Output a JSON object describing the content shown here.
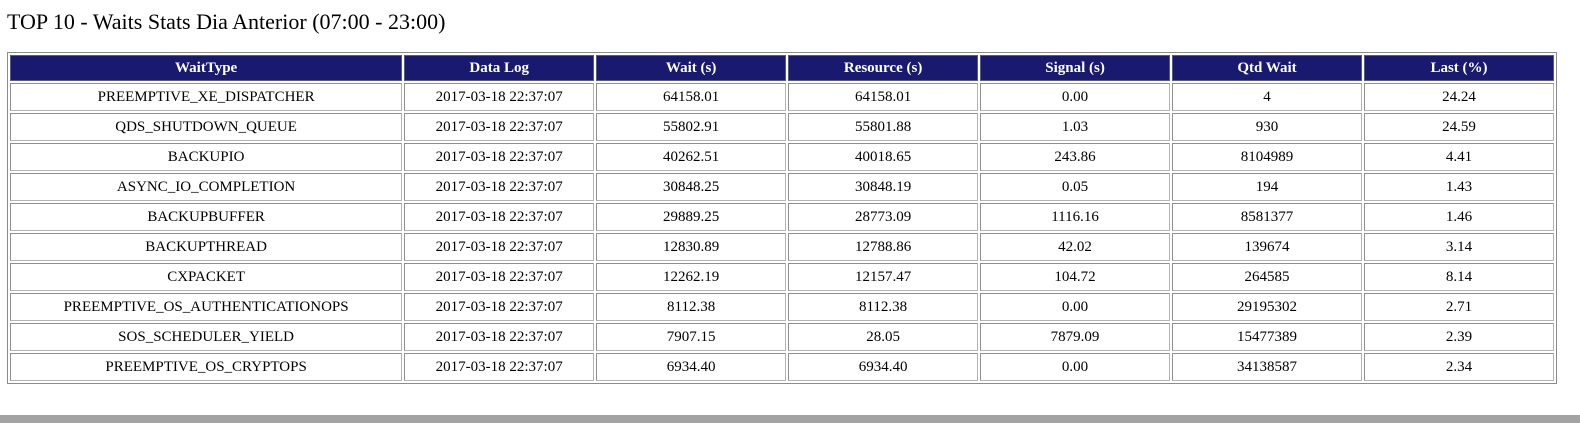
{
  "page": {
    "title": "TOP 10 - Waits Stats Dia Anterior (07:00 - 23:00)"
  },
  "table": {
    "columns": [
      "WaitType",
      "Data Log",
      "Wait (s)",
      "Resource (s)",
      "Signal (s)",
      "Qtd Wait",
      "Last (%)"
    ],
    "rows": [
      [
        "PREEMPTIVE_XE_DISPATCHER",
        "2017-03-18 22:37:07",
        "64158.01",
        "64158.01",
        "0.00",
        "4",
        "24.24"
      ],
      [
        "QDS_SHUTDOWN_QUEUE",
        "2017-03-18 22:37:07",
        "55802.91",
        "55801.88",
        "1.03",
        "930",
        "24.59"
      ],
      [
        "BACKUPIO",
        "2017-03-18 22:37:07",
        "40262.51",
        "40018.65",
        "243.86",
        "8104989",
        "4.41"
      ],
      [
        "ASYNC_IO_COMPLETION",
        "2017-03-18 22:37:07",
        "30848.25",
        "30848.19",
        "0.05",
        "194",
        "1.43"
      ],
      [
        "BACKUPBUFFER",
        "2017-03-18 22:37:07",
        "29889.25",
        "28773.09",
        "1116.16",
        "8581377",
        "1.46"
      ],
      [
        "BACKUPTHREAD",
        "2017-03-18 22:37:07",
        "12830.89",
        "12788.86",
        "42.02",
        "139674",
        "3.14"
      ],
      [
        "CXPACKET",
        "2017-03-18 22:37:07",
        "12262.19",
        "12157.47",
        "104.72",
        "264585",
        "8.14"
      ],
      [
        "PREEMPTIVE_OS_AUTHENTICATIONOPS",
        "2017-03-18 22:37:07",
        "8112.38",
        "8112.38",
        "0.00",
        "29195302",
        "2.71"
      ],
      [
        "SOS_SCHEDULER_YIELD",
        "2017-03-18 22:37:07",
        "7907.15",
        "28.05",
        "7879.09",
        "15477389",
        "2.39"
      ],
      [
        "PREEMPTIVE_OS_CRYPTOPS",
        "2017-03-18 22:37:07",
        "6934.40",
        "6934.40",
        "0.00",
        "34138587",
        "2.34"
      ]
    ]
  },
  "colors": {
    "header_bg": "#191970",
    "header_text": "#ffffff",
    "cell_border": "#b4b4b4",
    "outer_border": "#8c8c8c",
    "scrollbar": "#a3a3a3"
  }
}
